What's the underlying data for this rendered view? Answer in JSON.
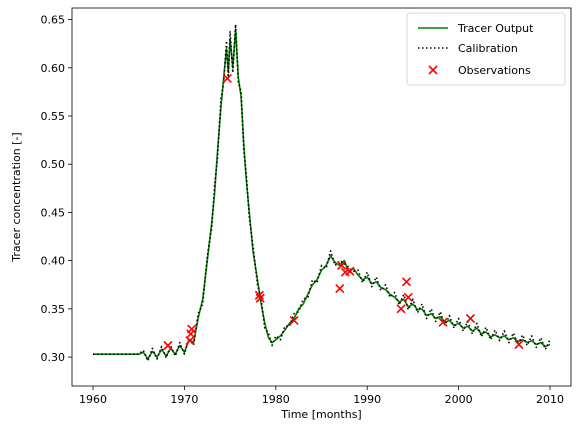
{
  "chart_data": {
    "type": "line",
    "title": "",
    "xlabel": "Time [months]",
    "ylabel": "Tracer concentration [-]",
    "xlim": [
      1957.7,
      2012.3
    ],
    "ylim": [
      0.27,
      0.662
    ],
    "x_ticks": [
      1960,
      1970,
      1980,
      1990,
      2000,
      2010
    ],
    "y_ticks": [
      0.3,
      0.35,
      0.4,
      0.45,
      0.5,
      0.55,
      0.6,
      0.65
    ],
    "x_tick_labels": [
      "1960",
      "1970",
      "1980",
      "1990",
      "2000",
      "2010"
    ],
    "y_tick_labels": [
      "0.30",
      "0.35",
      "0.40",
      "0.45",
      "0.50",
      "0.55",
      "0.60",
      "0.65"
    ],
    "grid": false,
    "legend_position": "upper right",
    "legend": {
      "tracer": "Tracer Output",
      "calibration": "Calibration",
      "observations": "Observations"
    },
    "colors": {
      "tracer": "#008000",
      "calibration": "#000000",
      "observations": "#ff0000"
    },
    "series": [
      {
        "name": "Tracer Output",
        "style": "solid",
        "x": [
          1960,
          1961,
          1962,
          1963,
          1964,
          1965,
          1965.5,
          1966,
          1966.5,
          1967,
          1967.5,
          1968,
          1968.5,
          1969,
          1969.5,
          1970,
          1970.5,
          1971,
          1971.5,
          1972,
          1972.5,
          1973,
          1973.3,
          1973.6,
          1974,
          1974.3,
          1974.6,
          1974.8,
          1975,
          1975.3,
          1975.6,
          1975.9,
          1976.2,
          1976.5,
          1976.8,
          1977.1,
          1977.5,
          1978,
          1978.4,
          1978.8,
          1979.2,
          1979.6,
          1980,
          1980.5,
          1981,
          1981.5,
          1982,
          1982.5,
          1983,
          1983.5,
          1984,
          1984.5,
          1985,
          1985.5,
          1986,
          1986.5,
          1987,
          1987.5,
          1988,
          1988.5,
          1989,
          1989.5,
          1990,
          1990.5,
          1991,
          1991.5,
          1992,
          1992.5,
          1993,
          1993.5,
          1994,
          1994.5,
          1995,
          1995.5,
          1996,
          1996.5,
          1997,
          1997.5,
          1998,
          1998.5,
          1999,
          1999.5,
          2000,
          2000.5,
          2001,
          2001.5,
          2002,
          2002.5,
          2003,
          2003.5,
          2004,
          2004.5,
          2005,
          2005.5,
          2006,
          2006.5,
          2007,
          2007.5,
          2008,
          2008.5,
          2009,
          2009.5,
          2010
        ],
        "y": [
          0.303,
          0.303,
          0.303,
          0.303,
          0.303,
          0.303,
          0.305,
          0.298,
          0.306,
          0.3,
          0.308,
          0.301,
          0.309,
          0.303,
          0.312,
          0.305,
          0.318,
          0.315,
          0.34,
          0.36,
          0.4,
          0.44,
          0.47,
          0.51,
          0.56,
          0.59,
          0.62,
          0.595,
          0.63,
          0.6,
          0.64,
          0.59,
          0.57,
          0.52,
          0.48,
          0.45,
          0.41,
          0.38,
          0.355,
          0.335,
          0.32,
          0.315,
          0.318,
          0.322,
          0.328,
          0.335,
          0.34,
          0.35,
          0.355,
          0.365,
          0.375,
          0.38,
          0.39,
          0.395,
          0.405,
          0.398,
          0.395,
          0.4,
          0.388,
          0.392,
          0.385,
          0.38,
          0.383,
          0.376,
          0.378,
          0.372,
          0.37,
          0.365,
          0.362,
          0.357,
          0.36,
          0.352,
          0.355,
          0.349,
          0.35,
          0.343,
          0.345,
          0.34,
          0.342,
          0.336,
          0.338,
          0.333,
          0.335,
          0.33,
          0.332,
          0.327,
          0.33,
          0.324,
          0.326,
          0.321,
          0.323,
          0.32,
          0.322,
          0.318,
          0.32,
          0.316,
          0.318,
          0.315,
          0.317,
          0.313,
          0.315,
          0.311,
          0.313
        ]
      },
      {
        "name": "Calibration",
        "style": "dotted",
        "x": [
          1960,
          1961,
          1962,
          1963,
          1964,
          1965,
          1965.5,
          1966,
          1966.5,
          1967,
          1967.5,
          1968,
          1968.5,
          1969,
          1969.5,
          1970,
          1970.5,
          1971,
          1971.5,
          1972,
          1972.5,
          1973,
          1973.3,
          1973.6,
          1974,
          1974.3,
          1974.6,
          1974.8,
          1975,
          1975.3,
          1975.6,
          1975.9,
          1976.2,
          1976.5,
          1976.8,
          1977.1,
          1977.5,
          1978,
          1978.4,
          1978.8,
          1979.2,
          1979.6,
          1980,
          1980.5,
          1981,
          1981.5,
          1982,
          1982.5,
          1983,
          1983.5,
          1984,
          1984.5,
          1985,
          1985.5,
          1986,
          1986.5,
          1987,
          1987.5,
          1988,
          1988.5,
          1989,
          1989.5,
          1990,
          1990.5,
          1991,
          1991.5,
          1992,
          1992.5,
          1993,
          1993.5,
          1994,
          1994.5,
          1995,
          1995.5,
          1996,
          1996.5,
          1997,
          1997.5,
          1998,
          1998.5,
          1999,
          1999.5,
          2000,
          2000.5,
          2001,
          2001.5,
          2002,
          2002.5,
          2003,
          2003.5,
          2004,
          2004.5,
          2005,
          2005.5,
          2006,
          2006.5,
          2007,
          2007.5,
          2008,
          2008.5,
          2009,
          2009.5,
          2010
        ],
        "y": [
          0.303,
          0.303,
          0.303,
          0.303,
          0.303,
          0.303,
          0.307,
          0.296,
          0.309,
          0.298,
          0.311,
          0.299,
          0.312,
          0.301,
          0.315,
          0.303,
          0.32,
          0.312,
          0.345,
          0.355,
          0.405,
          0.435,
          0.478,
          0.505,
          0.568,
          0.585,
          0.628,
          0.59,
          0.638,
          0.595,
          0.645,
          0.585,
          0.575,
          0.515,
          0.485,
          0.445,
          0.415,
          0.375,
          0.36,
          0.33,
          0.325,
          0.312,
          0.322,
          0.318,
          0.332,
          0.332,
          0.345,
          0.347,
          0.36,
          0.362,
          0.38,
          0.377,
          0.395,
          0.392,
          0.41,
          0.395,
          0.4,
          0.397,
          0.393,
          0.389,
          0.39,
          0.377,
          0.388,
          0.373,
          0.383,
          0.369,
          0.375,
          0.362,
          0.367,
          0.354,
          0.365,
          0.349,
          0.36,
          0.346,
          0.355,
          0.34,
          0.35,
          0.337,
          0.347,
          0.333,
          0.343,
          0.33,
          0.34,
          0.327,
          0.337,
          0.324,
          0.335,
          0.321,
          0.331,
          0.318,
          0.328,
          0.317,
          0.327,
          0.315,
          0.325,
          0.313,
          0.323,
          0.312,
          0.322,
          0.31,
          0.32,
          0.308,
          0.318
        ]
      },
      {
        "name": "Observations",
        "style": "marker-x",
        "points": [
          [
            1968.2,
            0.312
          ],
          [
            1970.6,
            0.317
          ],
          [
            1970.7,
            0.324
          ],
          [
            1970.8,
            0.329
          ],
          [
            1974.7,
            0.589
          ],
          [
            1978.2,
            0.364
          ],
          [
            1978.3,
            0.361
          ],
          [
            1982.0,
            0.338
          ],
          [
            1987.0,
            0.371
          ],
          [
            1987.2,
            0.395
          ],
          [
            1987.6,
            0.388
          ],
          [
            1988.1,
            0.389
          ],
          [
            1993.7,
            0.35
          ],
          [
            1994.3,
            0.378
          ],
          [
            1994.5,
            0.362
          ],
          [
            1998.3,
            0.336
          ],
          [
            2001.3,
            0.34
          ],
          [
            2006.6,
            0.313
          ]
        ]
      }
    ]
  }
}
